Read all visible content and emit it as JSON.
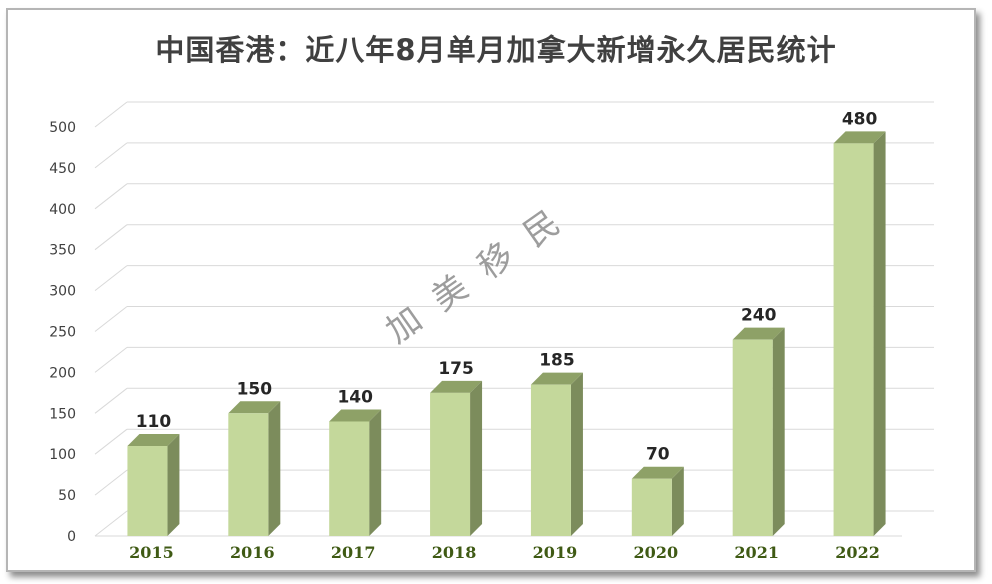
{
  "chart_data": {
    "type": "bar",
    "title": "中国香港：近八年8月单月加拿大新增永久居民统计",
    "categories": [
      "2015",
      "2016",
      "2017",
      "2018",
      "2019",
      "2020",
      "2021",
      "2022"
    ],
    "values": [
      110,
      150,
      140,
      175,
      185,
      70,
      240,
      480
    ],
    "data_labels": [
      "110",
      "150",
      "140",
      "175",
      "185",
      "70",
      "240",
      "480"
    ],
    "yticks": [
      0,
      50,
      100,
      150,
      200,
      250,
      300,
      350,
      400,
      450,
      500
    ],
    "ylim": [
      0,
      500
    ],
    "grid": true,
    "style": "3d-column",
    "bar_color": "#c4d89b",
    "bar_side_color": "#7c8c5c",
    "bar_top_color": "#8ea167",
    "xtick_color": "#3f5a14"
  },
  "watermark": "加美移民"
}
